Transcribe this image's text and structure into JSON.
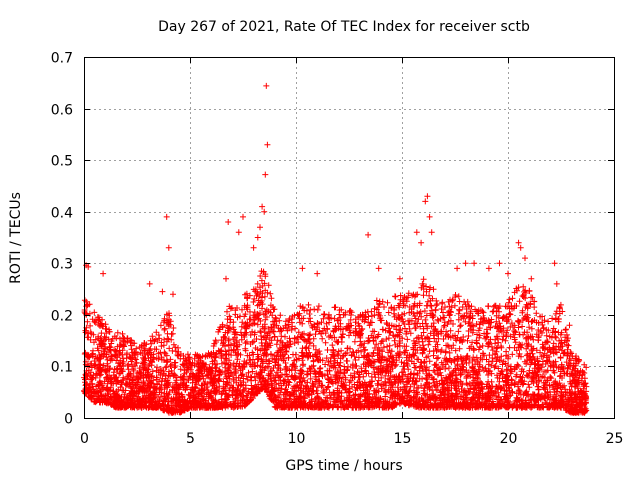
{
  "chart_data": {
    "type": "scatter",
    "title": "Day 267 of 2021, Rate Of TEC Index for receiver sctb",
    "xlabel": "GPS time / hours",
    "ylabel": "ROTI / TECUs",
    "xlim": [
      0,
      25
    ],
    "ylim": [
      0,
      0.7
    ],
    "xticks": [
      "0",
      "5",
      "10",
      "15",
      "20",
      "25"
    ],
    "yticks": [
      "0",
      "0.1",
      "0.2",
      "0.3",
      "0.4",
      "0.5",
      "0.6",
      "0.7"
    ],
    "grid": true,
    "marker": "+",
    "color": "#ff0000",
    "profile": [
      [
        0.0,
        0.05,
        0.24
      ],
      [
        0.5,
        0.03,
        0.21
      ],
      [
        1.0,
        0.03,
        0.19
      ],
      [
        1.5,
        0.02,
        0.17
      ],
      [
        2.0,
        0.02,
        0.16
      ],
      [
        2.5,
        0.02,
        0.14
      ],
      [
        3.0,
        0.02,
        0.15
      ],
      [
        3.5,
        0.02,
        0.17
      ],
      [
        4.0,
        0.01,
        0.21
      ],
      [
        4.5,
        0.01,
        0.13
      ],
      [
        5.0,
        0.02,
        0.13
      ],
      [
        5.5,
        0.02,
        0.12
      ],
      [
        6.0,
        0.02,
        0.13
      ],
      [
        6.5,
        0.02,
        0.19
      ],
      [
        7.0,
        0.02,
        0.23
      ],
      [
        7.5,
        0.02,
        0.24
      ],
      [
        8.0,
        0.04,
        0.25
      ],
      [
        8.5,
        0.06,
        0.3
      ],
      [
        9.0,
        0.02,
        0.21
      ],
      [
        9.5,
        0.02,
        0.19
      ],
      [
        10.0,
        0.02,
        0.21
      ],
      [
        10.5,
        0.02,
        0.23
      ],
      [
        11.0,
        0.02,
        0.22
      ],
      [
        11.5,
        0.02,
        0.21
      ],
      [
        12.0,
        0.02,
        0.22
      ],
      [
        12.5,
        0.02,
        0.21
      ],
      [
        13.0,
        0.02,
        0.2
      ],
      [
        13.5,
        0.02,
        0.21
      ],
      [
        14.0,
        0.02,
        0.24
      ],
      [
        14.5,
        0.02,
        0.23
      ],
      [
        15.0,
        0.03,
        0.25
      ],
      [
        15.5,
        0.02,
        0.24
      ],
      [
        16.0,
        0.02,
        0.27
      ],
      [
        16.5,
        0.02,
        0.25
      ],
      [
        17.0,
        0.02,
        0.22
      ],
      [
        17.5,
        0.02,
        0.24
      ],
      [
        18.0,
        0.02,
        0.23
      ],
      [
        18.5,
        0.02,
        0.21
      ],
      [
        19.0,
        0.02,
        0.22
      ],
      [
        19.5,
        0.02,
        0.22
      ],
      [
        20.0,
        0.02,
        0.23
      ],
      [
        20.5,
        0.02,
        0.26
      ],
      [
        21.0,
        0.02,
        0.25
      ],
      [
        21.5,
        0.02,
        0.2
      ],
      [
        22.0,
        0.02,
        0.19
      ],
      [
        22.5,
        0.02,
        0.22
      ],
      [
        23.0,
        0.01,
        0.13
      ],
      [
        23.7,
        0.01,
        0.1
      ]
    ],
    "outliers": [
      [
        0.1,
        0.296
      ],
      [
        0.2,
        0.293
      ],
      [
        0.9,
        0.28
      ],
      [
        3.1,
        0.26
      ],
      [
        3.7,
        0.245
      ],
      [
        3.9,
        0.39
      ],
      [
        4.0,
        0.33
      ],
      [
        4.2,
        0.24
      ],
      [
        6.7,
        0.27
      ],
      [
        6.8,
        0.38
      ],
      [
        7.3,
        0.36
      ],
      [
        7.5,
        0.39
      ],
      [
        8.0,
        0.33
      ],
      [
        8.2,
        0.35
      ],
      [
        8.3,
        0.37
      ],
      [
        8.4,
        0.41
      ],
      [
        8.5,
        0.4
      ],
      [
        8.55,
        0.472
      ],
      [
        8.6,
        0.644
      ],
      [
        8.65,
        0.53
      ],
      [
        10.3,
        0.29
      ],
      [
        11.0,
        0.28
      ],
      [
        13.4,
        0.355
      ],
      [
        13.9,
        0.29
      ],
      [
        14.9,
        0.27
      ],
      [
        15.7,
        0.36
      ],
      [
        15.9,
        0.34
      ],
      [
        16.1,
        0.42
      ],
      [
        16.2,
        0.43
      ],
      [
        16.3,
        0.39
      ],
      [
        16.4,
        0.36
      ],
      [
        17.6,
        0.29
      ],
      [
        18.0,
        0.3
      ],
      [
        18.4,
        0.3
      ],
      [
        19.1,
        0.29
      ],
      [
        19.6,
        0.3
      ],
      [
        20.0,
        0.28
      ],
      [
        20.5,
        0.34
      ],
      [
        20.6,
        0.33
      ],
      [
        20.8,
        0.31
      ],
      [
        21.1,
        0.27
      ],
      [
        22.2,
        0.3
      ],
      [
        22.3,
        0.26
      ],
      [
        22.9,
        0.18
      ]
    ],
    "points_per_hour": 230
  }
}
